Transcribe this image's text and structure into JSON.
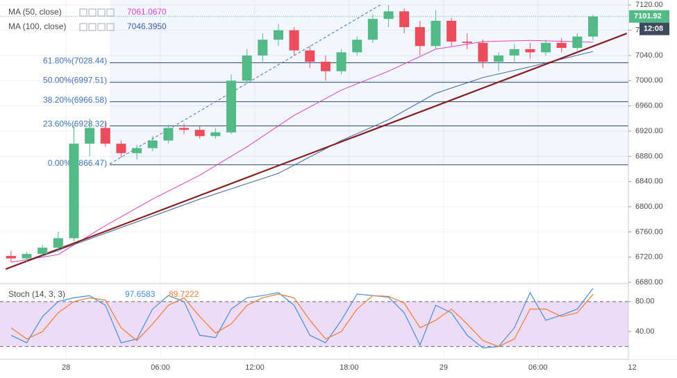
{
  "chart_data": {
    "type": "candlestick",
    "up_color": "#53b987",
    "down_color": "#eb4d5c",
    "x": [
      -3.5,
      -2.5,
      -1.5,
      -0.5,
      0.5,
      1.5,
      2.5,
      3.5,
      4.5,
      5.5,
      6.5,
      7.5,
      8.5,
      9.5,
      10.5,
      11.5,
      12.5,
      13.5,
      14.5,
      15.5,
      16.5,
      17.5,
      18.5,
      19.5,
      20.5,
      21.5,
      22.5,
      23.5,
      24.5,
      25.5,
      26.5,
      27.5,
      28.5,
      29.5,
      30.5,
      31.5,
      32.5,
      33.5
    ],
    "open": [
      6722,
      6718,
      6725,
      6735,
      6750,
      6900,
      6925,
      6900,
      6885,
      6893,
      6905,
      6925,
      6922,
      6912,
      6918,
      7000,
      7040,
      7065,
      7080,
      7048,
      7030,
      7015,
      7045,
      7065,
      7098,
      7110,
      7085,
      7055,
      7095,
      7062,
      7060,
      7030,
      7040,
      7050,
      7045,
      7060,
      7052,
      7070
    ],
    "high": [
      6730,
      6728,
      6740,
      6760,
      6930,
      6940,
      6935,
      6905,
      6898,
      6912,
      6930,
      6932,
      6928,
      6925,
      7010,
      7050,
      7075,
      7090,
      7085,
      7055,
      7040,
      7050,
      7070,
      7105,
      7120,
      7115,
      7095,
      7112,
      7100,
      7075,
      7065,
      7045,
      7058,
      7060,
      7065,
      7068,
      7075,
      7105
    ],
    "low": [
      6712,
      6712,
      6720,
      6728,
      6745,
      6880,
      6895,
      6878,
      6875,
      6888,
      6900,
      6915,
      6908,
      6908,
      6915,
      6995,
      7030,
      7055,
      7040,
      7020,
      7000,
      7010,
      7040,
      7060,
      7085,
      7075,
      7040,
      7050,
      7055,
      7050,
      7020,
      7015,
      7030,
      7035,
      7040,
      7045,
      7048,
      7065
    ],
    "close": [
      6718,
      6725,
      6735,
      6750,
      6900,
      6925,
      6900,
      6885,
      6893,
      6905,
      6925,
      6922,
      6912,
      6918,
      7000,
      7040,
      7065,
      7080,
      7048,
      7030,
      7015,
      7045,
      7065,
      7098,
      7110,
      7085,
      7055,
      7095,
      7062,
      7060,
      7030,
      7040,
      7050,
      7045,
      7060,
      7052,
      7070,
      7101.92
    ],
    "xlim": [
      -4.2,
      36.5
    ],
    "xticks": [
      {
        "value": 0,
        "label": "28"
      },
      {
        "value": 6,
        "label": "06:00"
      },
      {
        "value": 12,
        "label": "12:00"
      },
      {
        "value": 18,
        "label": "18:00"
      },
      {
        "value": 24,
        "label": "29"
      },
      {
        "value": 30,
        "label": "06:00"
      },
      {
        "value": 36,
        "label": "12"
      }
    ],
    "ylim": [
      6679,
      7128
    ],
    "yticks": [
      {
        "value": 6680,
        "label": "6680.00"
      },
      {
        "value": 6720,
        "label": "6720.00"
      },
      {
        "value": 6760,
        "label": "6760.00"
      },
      {
        "value": 6800,
        "label": "6800.00"
      },
      {
        "value": 6840,
        "label": "6840.00"
      },
      {
        "value": 6880,
        "label": "6880.00"
      },
      {
        "value": 6920,
        "label": "6920.00"
      },
      {
        "value": 6960,
        "label": "6960.00"
      },
      {
        "value": 7000,
        "label": "7000.00"
      },
      {
        "value": 7040,
        "label": "7040.00"
      },
      {
        "value": 7080,
        "label": "7080.00"
      },
      {
        "value": 7120,
        "label": "7120.00"
      }
    ],
    "last_price": 7101.92,
    "countdown": "12:08",
    "ma": [
      {
        "name": "MA (50, close)",
        "value_label": "7061.0670",
        "color": "#e040c8",
        "x": [
          -3.5,
          -0.5,
          2.5,
          5.5,
          8.5,
          11.5,
          14.5,
          17.5,
          20.5,
          23.5,
          26.5,
          29.5,
          33.5
        ],
        "values": [
          6712,
          6724,
          6770,
          6812,
          6850,
          6895,
          6945,
          6985,
          7015,
          7050,
          7062,
          7064,
          7061.067
        ]
      },
      {
        "name": "MA (100, close)",
        "value_label": "7046.3950",
        "color": "#3c5fa0",
        "x": [
          -3.5,
          0.5,
          4.5,
          8.5,
          13.5,
          17.5,
          20.5,
          23.5,
          26.5,
          29.5,
          33.5
        ],
        "values": [
          6704,
          6740,
          6776,
          6812,
          6853,
          6905,
          6938,
          6980,
          7005,
          7022,
          7046.395
        ]
      }
    ],
    "lines": [
      {
        "color": "#8b1a1a",
        "width": 2.2,
        "dash": false,
        "x": [
          -3.84,
          35.65
        ],
        "values": [
          6701,
          7075
        ]
      },
      {
        "color": "#3e73b8",
        "width": 1,
        "dash": true,
        "x": [
          2.78,
          20.1
        ],
        "values": [
          6868,
          7122
        ]
      }
    ],
    "fib": {
      "x_start": 2.78,
      "levels": [
        {
          "value": 7028.44,
          "label": "61.80%(7028.44)"
        },
        {
          "value": 6997.51,
          "label": "50.00%(6997.51)"
        },
        {
          "value": 6966.58,
          "label": "38.20%(6966.58)"
        },
        {
          "value": 6928.32,
          "label": "23.60%(6928.32)"
        },
        {
          "value": 6866.47,
          "label": "0.00%(6866.47)"
        }
      ]
    },
    "stoch": {
      "name": "Stoch (14, 3, 3)",
      "ylim": [
        3,
        103
      ],
      "yticks": [
        {
          "value": 80,
          "label": "80.00"
        },
        {
          "value": 40,
          "label": "40.00"
        }
      ],
      "levels": [
        20,
        80
      ],
      "series": [
        {
          "value_label": "97.6583",
          "color": "#3f8fe0",
          "values": [
            35,
            25,
            60,
            80,
            85,
            88,
            75,
            25,
            30,
            70,
            88,
            80,
            35,
            32,
            70,
            85,
            88,
            92,
            75,
            35,
            25,
            55,
            90,
            88,
            86,
            65,
            22,
            75,
            65,
            35,
            18,
            20,
            45,
            92,
            55,
            62,
            70,
            97.6583
          ]
        },
        {
          "value_label": "89.7222",
          "color": "#f07a2e",
          "values": [
            45,
            30,
            40,
            65,
            80,
            85,
            82,
            45,
            28,
            50,
            75,
            85,
            60,
            38,
            50,
            75,
            85,
            90,
            85,
            55,
            30,
            40,
            70,
            88,
            87,
            78,
            45,
            55,
            70,
            50,
            28,
            20,
            30,
            70,
            70,
            60,
            65,
            89.7222
          ]
        }
      ]
    }
  }
}
